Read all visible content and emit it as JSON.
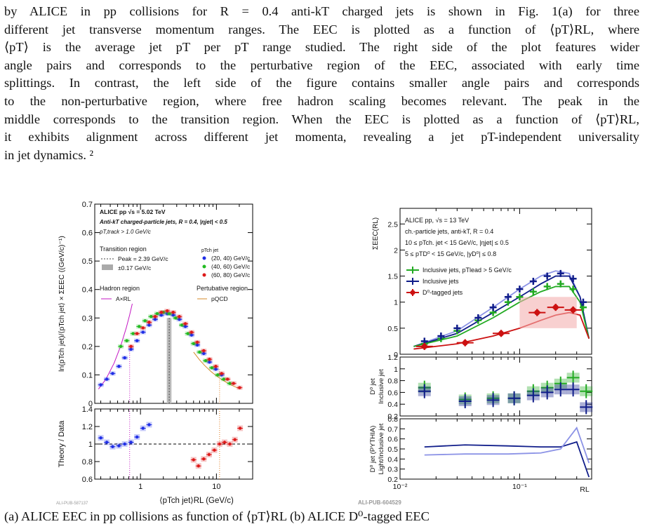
{
  "paragraph": {
    "lines": [
      "by ALICE in pp collisions for R = 0.4 anti-kT charged jets is shown in Fig. 1(a) for three",
      "different jet transverse momentum ranges. The EEC is plotted as a function of ⟨pT⟩RL, where",
      "⟨pT⟩ is the average jet pT per pT range studied. The right side of the plot features wider",
      "angle pairs and corresponds to the perturbative region of the EEC, associated with early time",
      "splittings. In contrast, the left side of the figure contains smaller angle pairs and corresponds",
      "to the non-perturbative region, where free hadron scaling becomes relevant. The peak in the",
      "middle corresponds to the transition region. When the EEC is plotted as a function of ⟨pT⟩RL,",
      "it exhibits alignment across different jet momenta, revealing a jet pT-independent universality",
      "in jet dynamics. ²"
    ]
  },
  "caption": "(a)  ALICE EEC in pp collisions as function of ⟨pT⟩RL                 (b)  ALICE D⁰-tagged EEC",
  "chart_data": [
    {
      "type": "scatter",
      "panel": "left-top",
      "header": [
        "ALICE  pp  √s = 5.02 TeV",
        "Anti-kT charged-particle jets, R = 0.4, |ηjet| < 0.5",
        "pT,track > 1.0 GeV/c"
      ],
      "ylabel": "ln(pTch jet)/⟨pTch jet⟩ × ΣEEC ((GeV/c)⁻¹)",
      "xlabel": "⟨pTch jet⟩RL (GeV/c)",
      "ylim": [
        0,
        0.7
      ],
      "xlim": [
        0.25,
        30
      ],
      "xscale": "log",
      "yticks": [
        "0",
        "0.1",
        "0.2",
        "0.3",
        "0.4",
        "0.5",
        "0.6",
        "0.7"
      ],
      "xticks": [
        "1",
        "10"
      ],
      "legend": {
        "transition": [
          "Transition region",
          "Peak = 2.39 GeV/c",
          "±0.17 GeV/c"
        ],
        "series_title": "pTch jet",
        "hadron": [
          "Hadron region",
          "A×RL"
        ],
        "pert": [
          "Pertubative region",
          "pQCD"
        ]
      },
      "series": [
        {
          "name": "(20, 40) GeV/c",
          "color": "#1f2ee6",
          "x": [
            0.3,
            0.36,
            0.43,
            0.52,
            0.62,
            0.75,
            0.9,
            1.08,
            1.3,
            1.56,
            1.88,
            2.25,
            2.7,
            3.25,
            3.9,
            4.7,
            5.6,
            6.8,
            8.1,
            9.8,
            11.7
          ],
          "y": [
            0.065,
            0.085,
            0.105,
            0.13,
            0.16,
            0.19,
            0.22,
            0.25,
            0.275,
            0.295,
            0.31,
            0.315,
            0.31,
            0.295,
            0.27,
            0.24,
            0.205,
            0.175,
            0.145,
            0.12,
            0.1
          ]
        },
        {
          "name": "(40, 60) GeV/c",
          "color": "#22bb22",
          "x": [
            0.55,
            0.66,
            0.8,
            0.96,
            1.15,
            1.38,
            1.66,
            2.0,
            2.4,
            2.9,
            3.5,
            4.2,
            5.0,
            6.0,
            7.2,
            8.7,
            10.4,
            12.5,
            15.0
          ],
          "y": [
            0.2,
            0.22,
            0.245,
            0.27,
            0.29,
            0.305,
            0.315,
            0.32,
            0.315,
            0.3,
            0.275,
            0.245,
            0.21,
            0.18,
            0.15,
            0.125,
            0.1,
            0.085,
            0.07
          ]
        },
        {
          "name": "(60, 80) GeV/c",
          "color": "#dd1a1a",
          "x": [
            0.75,
            0.9,
            1.08,
            1.3,
            1.56,
            1.88,
            2.25,
            2.7,
            3.25,
            3.9,
            4.7,
            5.6,
            6.8,
            8.1,
            9.8,
            11.7,
            14.0,
            16.8,
            20.2
          ],
          "y": [
            0.2,
            0.245,
            0.265,
            0.285,
            0.305,
            0.32,
            0.325,
            0.32,
            0.305,
            0.28,
            0.25,
            0.215,
            0.185,
            0.155,
            0.13,
            0.105,
            0.085,
            0.07,
            0.055
          ]
        }
      ]
    },
    {
      "type": "scatter",
      "panel": "left-bottom",
      "ylabel": "Theory / Data",
      "ylim": [
        0.6,
        1.4
      ],
      "yticks": [
        "0.6",
        "0.8",
        "1",
        "1.2",
        "1.4"
      ],
      "series": [
        {
          "name": "Hadron region",
          "color": "#1f2ee6",
          "x": [
            0.3,
            0.36,
            0.43,
            0.52,
            0.62,
            0.75,
            0.9,
            1.08,
            1.3
          ],
          "y": [
            1.07,
            1.02,
            0.97,
            0.98,
            1.0,
            1.02,
            1.08,
            1.18,
            1.22
          ]
        },
        {
          "name": "Pertubative region",
          "color": "#dd1a1a",
          "x": [
            5.0,
            5.8,
            6.8,
            8.0,
            9.4,
            11.0,
            12.8,
            15.0,
            17.5,
            20.5
          ],
          "y": [
            0.82,
            0.75,
            0.83,
            0.88,
            0.93,
            1.0,
            1.02,
            1.0,
            1.05,
            1.18
          ]
        }
      ]
    },
    {
      "type": "line",
      "panel": "right-top",
      "header": [
        "ALICE pp, √s = 13 TeV",
        "ch.-particle jets, anti-kT, R = 0.4",
        "10 ≤ pTch. jet < 15 GeV/c, |ηjet| ≤ 0.5",
        "5 ≤ pTD⁰ < 15 GeV/c, |yD⁰| ≤ 0.8"
      ],
      "ylabel": "ΣEEC(RL)",
      "xlabel": "RL",
      "xscale": "log",
      "xlim": [
        0.01,
        0.4
      ],
      "ylim": [
        0,
        2.8
      ],
      "yticks": [
        "0",
        "0.5",
        "1",
        "1.5",
        "2",
        "2.5"
      ],
      "legend": [
        "Inclusive jets, pTlead > 5 GeV/c",
        "Inclusive jets",
        "D⁰-tagged jets"
      ],
      "series": [
        {
          "name": "Inclusive jets, pTlead > 5 GeV/c",
          "color": "#22aa22",
          "x": [
            0.016,
            0.022,
            0.03,
            0.045,
            0.06,
            0.08,
            0.1,
            0.13,
            0.17,
            0.22,
            0.28,
            0.34
          ],
          "y": [
            0.2,
            0.3,
            0.45,
            0.65,
            0.8,
            1.0,
            1.1,
            1.2,
            1.3,
            1.35,
            1.25,
            0.9
          ]
        },
        {
          "name": "Inclusive jets",
          "color": "#101d8a",
          "x": [
            0.016,
            0.022,
            0.03,
            0.045,
            0.06,
            0.08,
            0.1,
            0.13,
            0.17,
            0.22,
            0.28,
            0.34
          ],
          "y": [
            0.25,
            0.35,
            0.5,
            0.7,
            0.9,
            1.1,
            1.25,
            1.4,
            1.5,
            1.55,
            1.45,
            1.0
          ]
        },
        {
          "name": "D⁰-tagged jets",
          "color": "#cc1111",
          "x": [
            0.016,
            0.035,
            0.07,
            0.14,
            0.2,
            0.28
          ],
          "y": [
            0.15,
            0.22,
            0.4,
            0.8,
            0.9,
            0.85
          ]
        }
      ]
    },
    {
      "type": "scatter",
      "panel": "right-middle",
      "ylabel": "D⁰ jet / Inclusive jet",
      "ylim": [
        0.2,
        1.2
      ],
      "yticks": [
        "0.2",
        "0.4",
        "0.6",
        "0.8",
        "1",
        "1.2"
      ],
      "series": [
        {
          "name": "green",
          "color": "#22aa22",
          "x": [
            0.016,
            0.035,
            0.06,
            0.09,
            0.13,
            0.17,
            0.22,
            0.28,
            0.36
          ],
          "y": [
            0.68,
            0.48,
            0.5,
            0.5,
            0.62,
            0.68,
            0.75,
            0.85,
            0.62
          ]
        },
        {
          "name": "blue",
          "color": "#101d8a",
          "x": [
            0.016,
            0.035,
            0.06,
            0.09,
            0.13,
            0.17,
            0.22,
            0.28,
            0.36
          ],
          "y": [
            0.62,
            0.45,
            0.47,
            0.5,
            0.55,
            0.6,
            0.65,
            0.65,
            0.35
          ]
        }
      ]
    },
    {
      "type": "line",
      "panel": "right-bottom",
      "ylabel": "D⁰ jet (PYTHIA) / Light/Inclusive jet",
      "ylim": [
        0.2,
        0.8
      ],
      "yticks": [
        "0.2",
        "0.3",
        "0.4",
        "0.5",
        "0.6",
        "0.7",
        "0.8"
      ],
      "xticks": [
        "10⁻²",
        "10⁻¹"
      ],
      "series": [
        {
          "name": "dark",
          "color": "#101d8a",
          "x": [
            0.016,
            0.035,
            0.08,
            0.15,
            0.22,
            0.3,
            0.38
          ],
          "y": [
            0.52,
            0.54,
            0.53,
            0.52,
            0.52,
            0.57,
            0.22
          ]
        },
        {
          "name": "light",
          "color": "#8c93e6",
          "x": [
            0.016,
            0.035,
            0.08,
            0.15,
            0.22,
            0.3,
            0.38
          ],
          "y": [
            0.44,
            0.45,
            0.45,
            0.46,
            0.5,
            0.71,
            0.36
          ]
        }
      ]
    }
  ],
  "labels": {
    "left_pub": "ALI-PUB-587137",
    "right_pub": "ALI-PUB-604529"
  }
}
